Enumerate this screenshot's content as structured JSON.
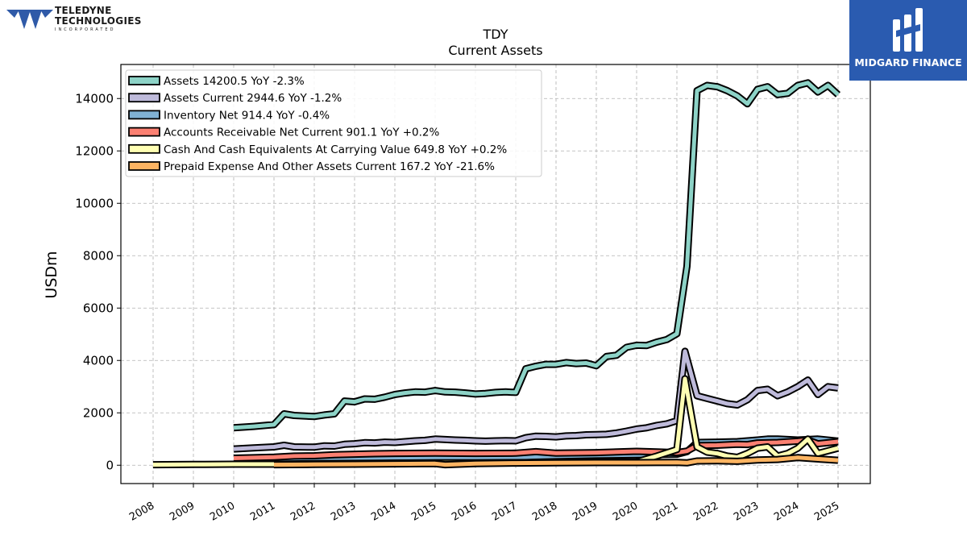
{
  "branding": {
    "company_line1": "TELEDYNE",
    "company_line2": "TECHNOLOGIES",
    "company_line3": "INCORPORATED",
    "watermark": "MIDGARD FINANCE",
    "watermark_color": "#2a5bb0"
  },
  "chart_data": {
    "type": "line",
    "title": "TDY",
    "subtitle": "Current  Assets",
    "ylabel": "USDm",
    "xlim": [
      2007.2,
      2025.8
    ],
    "ylim": [
      -700,
      15300
    ],
    "yticks": [
      0,
      2000,
      4000,
      6000,
      8000,
      10000,
      12000,
      14000
    ],
    "xticks": [
      "2008",
      "2009",
      "2010",
      "2011",
      "2012",
      "2013",
      "2014",
      "2015",
      "2016",
      "2017",
      "2018",
      "2019",
      "2020",
      "2021",
      "2022",
      "2023",
      "2024",
      "2025"
    ],
    "grid": true,
    "legend_position": "top-left",
    "series": [
      {
        "name": "Assets  14200.5 YoY -2.3%",
        "color": "#8dd3c7",
        "points": [
          [
            2010.0,
            1430
          ],
          [
            2010.5,
            1480
          ],
          [
            2011.0,
            1550
          ],
          [
            2011.25,
            1960
          ],
          [
            2011.5,
            1900
          ],
          [
            2012.0,
            1860
          ],
          [
            2012.25,
            1920
          ],
          [
            2012.5,
            1960
          ],
          [
            2012.75,
            2450
          ],
          [
            2013.0,
            2420
          ],
          [
            2013.25,
            2530
          ],
          [
            2013.5,
            2520
          ],
          [
            2013.75,
            2600
          ],
          [
            2014.0,
            2700
          ],
          [
            2014.25,
            2760
          ],
          [
            2014.5,
            2800
          ],
          [
            2014.75,
            2790
          ],
          [
            2015.0,
            2850
          ],
          [
            2015.25,
            2800
          ],
          [
            2015.5,
            2790
          ],
          [
            2015.75,
            2760
          ],
          [
            2016.0,
            2720
          ],
          [
            2016.25,
            2740
          ],
          [
            2016.5,
            2780
          ],
          [
            2016.75,
            2800
          ],
          [
            2017.0,
            2780
          ],
          [
            2017.25,
            3680
          ],
          [
            2017.5,
            3780
          ],
          [
            2017.75,
            3850
          ],
          [
            2018.0,
            3850
          ],
          [
            2018.25,
            3920
          ],
          [
            2018.5,
            3880
          ],
          [
            2018.75,
            3900
          ],
          [
            2019.0,
            3800
          ],
          [
            2019.25,
            4150
          ],
          [
            2019.5,
            4200
          ],
          [
            2019.75,
            4500
          ],
          [
            2020.0,
            4580
          ],
          [
            2020.25,
            4570
          ],
          [
            2020.5,
            4700
          ],
          [
            2020.75,
            4800
          ],
          [
            2021.0,
            5020
          ],
          [
            2021.25,
            7600
          ],
          [
            2021.5,
            14300
          ],
          [
            2021.75,
            14500
          ],
          [
            2022.0,
            14450
          ],
          [
            2022.25,
            14300
          ],
          [
            2022.5,
            14100
          ],
          [
            2022.75,
            13800
          ],
          [
            2023.0,
            14350
          ],
          [
            2023.25,
            14450
          ],
          [
            2023.5,
            14150
          ],
          [
            2023.75,
            14200
          ],
          [
            2024.0,
            14500
          ],
          [
            2024.25,
            14600
          ],
          [
            2024.5,
            14250
          ],
          [
            2024.75,
            14500
          ],
          [
            2025.0,
            14150
          ]
        ]
      },
      {
        "name": "Assets Current  2944.6 YoY -1.2%",
        "color": "#bebada",
        "points": [
          [
            2010.0,
            620
          ],
          [
            2010.5,
            660
          ],
          [
            2011.0,
            700
          ],
          [
            2011.25,
            760
          ],
          [
            2011.5,
            700
          ],
          [
            2012.0,
            690
          ],
          [
            2012.25,
            740
          ],
          [
            2012.5,
            730
          ],
          [
            2012.75,
            800
          ],
          [
            2013.0,
            820
          ],
          [
            2013.25,
            860
          ],
          [
            2013.5,
            850
          ],
          [
            2013.75,
            880
          ],
          [
            2014.0,
            870
          ],
          [
            2014.25,
            900
          ],
          [
            2014.5,
            930
          ],
          [
            2014.75,
            950
          ],
          [
            2015.0,
            1000
          ],
          [
            2015.25,
            980
          ],
          [
            2015.5,
            960
          ],
          [
            2015.75,
            950
          ],
          [
            2016.0,
            930
          ],
          [
            2016.25,
            920
          ],
          [
            2016.5,
            930
          ],
          [
            2016.75,
            940
          ],
          [
            2017.0,
            930
          ],
          [
            2017.25,
            1050
          ],
          [
            2017.5,
            1110
          ],
          [
            2017.75,
            1100
          ],
          [
            2018.0,
            1080
          ],
          [
            2018.25,
            1120
          ],
          [
            2018.5,
            1130
          ],
          [
            2018.75,
            1160
          ],
          [
            2019.0,
            1170
          ],
          [
            2019.25,
            1180
          ],
          [
            2019.5,
            1230
          ],
          [
            2019.75,
            1300
          ],
          [
            2020.0,
            1380
          ],
          [
            2020.25,
            1430
          ],
          [
            2020.5,
            1520
          ],
          [
            2020.75,
            1580
          ],
          [
            2021.0,
            1700
          ],
          [
            2021.2,
            4350
          ],
          [
            2021.5,
            2650
          ],
          [
            2021.75,
            2550
          ],
          [
            2022.0,
            2450
          ],
          [
            2022.25,
            2350
          ],
          [
            2022.5,
            2300
          ],
          [
            2022.75,
            2500
          ],
          [
            2023.0,
            2850
          ],
          [
            2023.25,
            2900
          ],
          [
            2023.5,
            2650
          ],
          [
            2023.75,
            2800
          ],
          [
            2024.0,
            3000
          ],
          [
            2024.25,
            3250
          ],
          [
            2024.5,
            2700
          ],
          [
            2024.75,
            3000
          ],
          [
            2025.0,
            2950
          ]
        ]
      },
      {
        "name": "Inventory Net  914.4 YoY -0.4%",
        "color": "#80b1d3",
        "points": [
          [
            2010.0,
            240
          ],
          [
            2011.0,
            250
          ],
          [
            2011.5,
            240
          ],
          [
            2012.0,
            250
          ],
          [
            2013.0,
            270
          ],
          [
            2014.0,
            290
          ],
          [
            2015.0,
            300
          ],
          [
            2016.0,
            290
          ],
          [
            2017.0,
            300
          ],
          [
            2017.5,
            330
          ],
          [
            2018.0,
            350
          ],
          [
            2019.0,
            380
          ],
          [
            2020.0,
            400
          ],
          [
            2021.0,
            420
          ],
          [
            2021.25,
            520
          ],
          [
            2021.5,
            870
          ],
          [
            2022.0,
            880
          ],
          [
            2022.5,
            900
          ],
          [
            2023.0,
            960
          ],
          [
            2023.25,
            1000
          ],
          [
            2023.5,
            1000
          ],
          [
            2024.0,
            960
          ],
          [
            2024.5,
            1000
          ],
          [
            2025.0,
            920
          ]
        ]
      },
      {
        "name": "Accounts Receivable Net Current  901.1 YoY +0.2%",
        "color": "#fb8072",
        "points": [
          [
            2010.0,
            270
          ],
          [
            2011.0,
            310
          ],
          [
            2011.5,
            350
          ],
          [
            2012.0,
            360
          ],
          [
            2012.5,
            400
          ],
          [
            2013.0,
            420
          ],
          [
            2013.5,
            440
          ],
          [
            2014.0,
            450
          ],
          [
            2015.0,
            460
          ],
          [
            2016.0,
            450
          ],
          [
            2017.0,
            460
          ],
          [
            2017.5,
            520
          ],
          [
            2018.0,
            460
          ],
          [
            2019.0,
            480
          ],
          [
            2020.0,
            530
          ],
          [
            2020.5,
            510
          ],
          [
            2021.0,
            480
          ],
          [
            2021.25,
            540
          ],
          [
            2021.5,
            750
          ],
          [
            2022.0,
            760
          ],
          [
            2022.5,
            800
          ],
          [
            2022.75,
            790
          ],
          [
            2023.0,
            850
          ],
          [
            2023.5,
            870
          ],
          [
            2024.0,
            920
          ],
          [
            2024.25,
            960
          ],
          [
            2024.5,
            820
          ],
          [
            2025.0,
            900
          ]
        ]
      },
      {
        "name": "Cash And Cash Equivalents At Carrying Value  649.8 YoY +0.2%",
        "color": "#ffffb3",
        "points": [
          [
            2008.0,
            20
          ],
          [
            2009.0,
            30
          ],
          [
            2010.0,
            40
          ],
          [
            2010.5,
            40
          ],
          [
            2011.0,
            40
          ],
          [
            2011.5,
            50
          ],
          [
            2012.0,
            60
          ],
          [
            2013.0,
            70
          ],
          [
            2014.0,
            80
          ],
          [
            2015.0,
            90
          ],
          [
            2016.0,
            90
          ],
          [
            2017.0,
            100
          ],
          [
            2018.0,
            110
          ],
          [
            2019.0,
            120
          ],
          [
            2020.0,
            130
          ],
          [
            2020.5,
            350
          ],
          [
            2021.0,
            600
          ],
          [
            2021.2,
            3300
          ],
          [
            2021.5,
            700
          ],
          [
            2021.75,
            500
          ],
          [
            2022.0,
            450
          ],
          [
            2022.25,
            350
          ],
          [
            2022.5,
            300
          ],
          [
            2022.75,
            450
          ],
          [
            2023.0,
            650
          ],
          [
            2023.25,
            700
          ],
          [
            2023.5,
            350
          ],
          [
            2023.75,
            450
          ],
          [
            2024.0,
            650
          ],
          [
            2024.25,
            1000
          ],
          [
            2024.5,
            450
          ],
          [
            2025.0,
            650
          ]
        ]
      },
      {
        "name": "Prepaid Expense And Other Assets Current  167.2 YoY -21.6%",
        "color": "#fdb462",
        "points": [
          [
            2011.0,
            20
          ],
          [
            2012.0,
            30
          ],
          [
            2013.0,
            40
          ],
          [
            2014.0,
            50
          ],
          [
            2015.0,
            60
          ],
          [
            2015.25,
            20
          ],
          [
            2016.0,
            60
          ],
          [
            2017.0,
            80
          ],
          [
            2018.0,
            90
          ],
          [
            2019.0,
            100
          ],
          [
            2020.0,
            100
          ],
          [
            2021.0,
            110
          ],
          [
            2021.25,
            90
          ],
          [
            2021.5,
            160
          ],
          [
            2022.0,
            170
          ],
          [
            2022.5,
            150
          ],
          [
            2023.0,
            200
          ],
          [
            2023.5,
            220
          ],
          [
            2024.0,
            290
          ],
          [
            2024.5,
            240
          ],
          [
            2025.0,
            190
          ]
        ]
      }
    ]
  }
}
